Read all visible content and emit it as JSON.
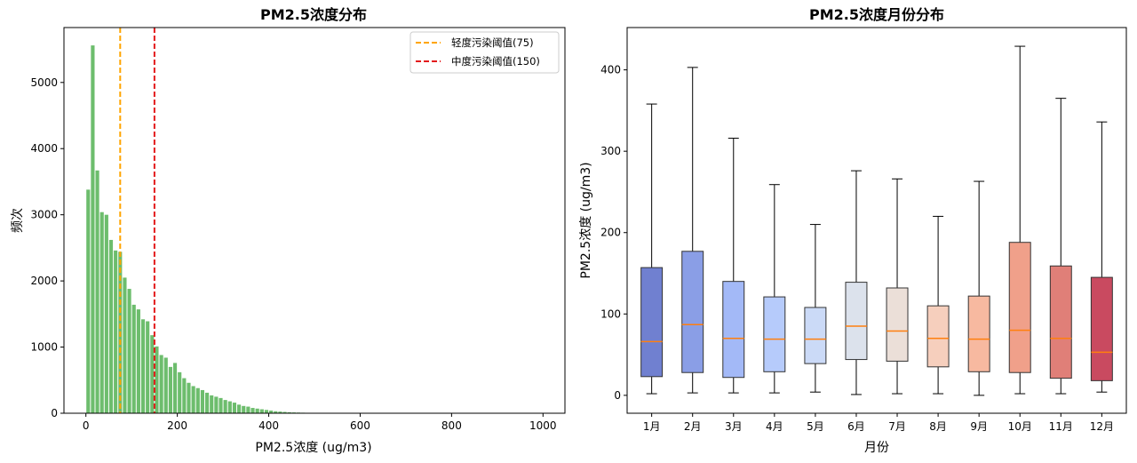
{
  "chart_data": [
    {
      "type": "bar",
      "title": "PM2.5浓度分布",
      "xlabel": "PM2.5浓度 (ug/m3)",
      "ylabel": "频次",
      "xlim": [
        -48,
        1048
      ],
      "ylim": [
        0,
        5830
      ],
      "xticks": [
        "0",
        "200",
        "400",
        "600",
        "800",
        "1000"
      ],
      "yticks": [
        "0",
        "1000",
        "2000",
        "3000",
        "4000",
        "5000"
      ],
      "bin_width": 10,
      "bin_starts": [
        0,
        10,
        20,
        30,
        40,
        50,
        60,
        70,
        80,
        90,
        100,
        110,
        120,
        130,
        140,
        150,
        160,
        170,
        180,
        190,
        200,
        210,
        220,
        230,
        240,
        250,
        260,
        270,
        280,
        290,
        300,
        310,
        320,
        330,
        340,
        350,
        360,
        370,
        380,
        390,
        400,
        410,
        420,
        430,
        440,
        450,
        460,
        470,
        480,
        490,
        500
      ],
      "values": [
        3380,
        5560,
        3670,
        3040,
        3000,
        2620,
        2460,
        2440,
        2050,
        1880,
        1640,
        1570,
        1420,
        1390,
        1180,
        1010,
        880,
        840,
        700,
        760,
        620,
        530,
        460,
        410,
        380,
        350,
        310,
        270,
        250,
        230,
        200,
        180,
        160,
        130,
        110,
        100,
        80,
        70,
        60,
        50,
        40,
        30,
        25,
        20,
        15,
        12,
        10,
        8,
        6,
        4,
        2
      ],
      "color": "#6dbd6d",
      "legend_position": "top-right",
      "reference_lines": [
        {
          "x": 75,
          "label": "轻度污染阈值(75)",
          "color": "#ffa500"
        },
        {
          "x": 150,
          "label": "中度污染阈值(150)",
          "color": "#e31a1c"
        }
      ],
      "grid": false
    },
    {
      "type": "box",
      "title": "PM2.5浓度月份分布",
      "xlabel": "月份",
      "ylabel": "PM2.5浓度 (ug/m3)",
      "ylim": [
        -22,
        452
      ],
      "yticks": [
        "0",
        "100",
        "200",
        "300",
        "400"
      ],
      "categories": [
        "1月",
        "2月",
        "3月",
        "4月",
        "5月",
        "6月",
        "7月",
        "8月",
        "9月",
        "10月",
        "11月",
        "12月"
      ],
      "boxes": [
        {
          "whislo": 2,
          "q1": 23,
          "med": 66,
          "q3": 157,
          "whishi": 358,
          "color": "#7080d0"
        },
        {
          "whislo": 3,
          "q1": 28,
          "med": 87,
          "q3": 177,
          "whishi": 403,
          "color": "#8a9ee6"
        },
        {
          "whislo": 3,
          "q1": 22,
          "med": 70,
          "q3": 140,
          "whishi": 316,
          "color": "#a3b9f7"
        },
        {
          "whislo": 3,
          "q1": 29,
          "med": 69,
          "q3": 121,
          "whishi": 259,
          "color": "#b6cbfb"
        },
        {
          "whislo": 4,
          "q1": 39,
          "med": 69,
          "q3": 108,
          "whishi": 210,
          "color": "#cbdaf7"
        },
        {
          "whislo": 1,
          "q1": 44,
          "med": 85,
          "q3": 139,
          "whishi": 276,
          "color": "#dce2ec"
        },
        {
          "whislo": 2,
          "q1": 42,
          "med": 79,
          "q3": 132,
          "whishi": 266,
          "color": "#ebdfd8"
        },
        {
          "whislo": 2,
          "q1": 35,
          "med": 70,
          "q3": 110,
          "whishi": 220,
          "color": "#f6cfbd"
        },
        {
          "whislo": 0,
          "q1": 29,
          "med": 69,
          "q3": 122,
          "whishi": 263,
          "color": "#f7b9a0"
        },
        {
          "whislo": 2,
          "q1": 28,
          "med": 80,
          "q3": 188,
          "whishi": 429,
          "color": "#f0a08a"
        },
        {
          "whislo": 2,
          "q1": 21,
          "med": 70,
          "q3": 159,
          "whishi": 365,
          "color": "#e07f78"
        },
        {
          "whislo": 4,
          "q1": 18,
          "med": 53,
          "q3": 145,
          "whishi": 336,
          "color": "#c94a60"
        }
      ],
      "median_color": "#ff7f0e",
      "grid": false
    }
  ]
}
